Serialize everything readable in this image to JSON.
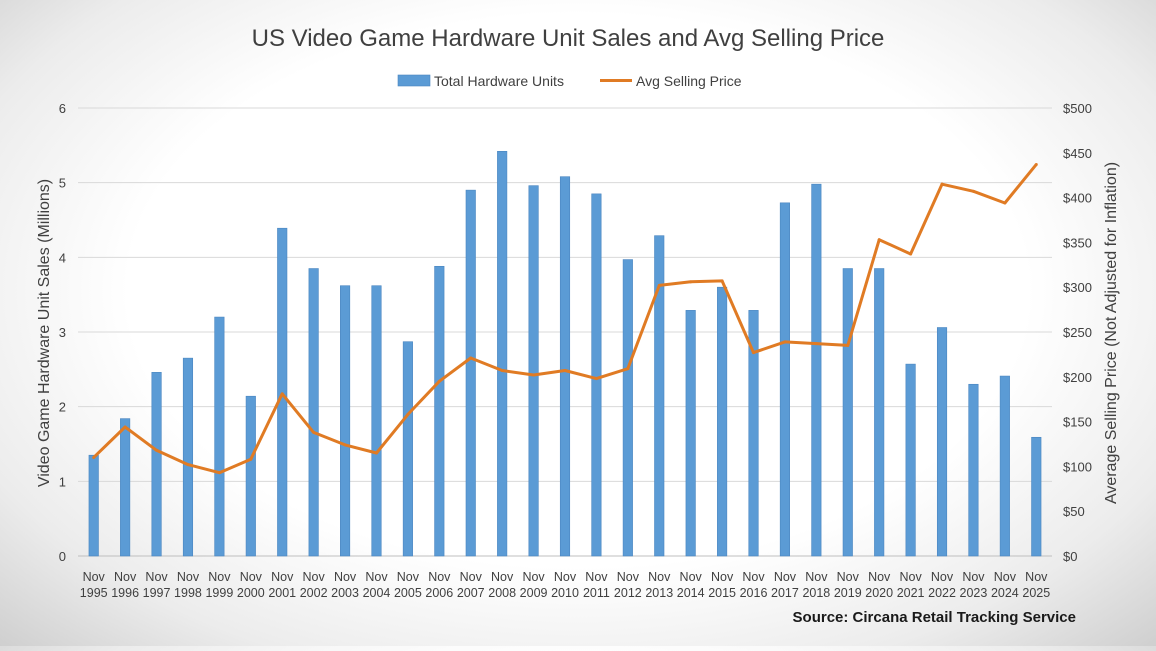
{
  "chart_data": {
    "type": "bar+line",
    "title": "US Video Game Hardware Unit Sales and Avg Selling Price",
    "ylabel_left": "Video Game Hardware Unit Sales (Millions)",
    "ylabel_right": "Average Selling Price (Not Adjusted for Inflation)",
    "source": "Source: Circana Retail Tracking Service",
    "legend": {
      "position": "top-center",
      "bar_label": "Total Hardware Units",
      "line_label": "Avg Selling Price"
    },
    "y_left": {
      "min": 0,
      "max": 6,
      "ticks": [
        "0",
        "1",
        "2",
        "3",
        "4",
        "5",
        "6"
      ]
    },
    "y_right": {
      "min": 0,
      "max": 500,
      "ticks": [
        "$0",
        "$50",
        "$100",
        "$150",
        "$200",
        "$250",
        "$300",
        "$350",
        "$400",
        "$450",
        "$500"
      ]
    },
    "grid": true,
    "categories": [
      {
        "month": "Nov",
        "year": "1995"
      },
      {
        "month": "Nov",
        "year": "1996"
      },
      {
        "month": "Nov",
        "year": "1997"
      },
      {
        "month": "Nov",
        "year": "1998"
      },
      {
        "month": "Nov",
        "year": "1999"
      },
      {
        "month": "Nov",
        "year": "2000"
      },
      {
        "month": "Nov",
        "year": "2001"
      },
      {
        "month": "Nov",
        "year": "2002"
      },
      {
        "month": "Nov",
        "year": "2003"
      },
      {
        "month": "Nov",
        "year": "2004"
      },
      {
        "month": "Nov",
        "year": "2005"
      },
      {
        "month": "Nov",
        "year": "2006"
      },
      {
        "month": "Nov",
        "year": "2007"
      },
      {
        "month": "Nov",
        "year": "2008"
      },
      {
        "month": "Nov",
        "year": "2009"
      },
      {
        "month": "Nov",
        "year": "2010"
      },
      {
        "month": "Nov",
        "year": "2011"
      },
      {
        "month": "Nov",
        "year": "2012"
      },
      {
        "month": "Nov",
        "year": "2013"
      },
      {
        "month": "Nov",
        "year": "2014"
      },
      {
        "month": "Nov",
        "year": "2015"
      },
      {
        "month": "Nov",
        "year": "2016"
      },
      {
        "month": "Nov",
        "year": "2017"
      },
      {
        "month": "Nov",
        "year": "2018"
      },
      {
        "month": "Nov",
        "year": "2019"
      },
      {
        "month": "Nov",
        "year": "2020"
      },
      {
        "month": "Nov",
        "year": "2021"
      },
      {
        "month": "Nov",
        "year": "2022"
      },
      {
        "month": "Nov",
        "year": "2023"
      },
      {
        "month": "Nov",
        "year": "2024"
      },
      {
        "month": "Nov",
        "year": "2025"
      }
    ],
    "series": [
      {
        "name": "Total Hardware Units",
        "axis": "left",
        "type": "bar",
        "values": [
          1.35,
          1.84,
          2.46,
          2.65,
          3.2,
          2.14,
          4.39,
          3.85,
          3.62,
          3.62,
          2.87,
          3.88,
          4.9,
          5.42,
          4.96,
          5.08,
          4.85,
          3.97,
          4.29,
          3.29,
          3.6,
          3.29,
          4.73,
          4.98,
          3.85,
          3.85,
          2.57,
          3.06,
          2.3,
          2.41,
          1.59
        ]
      },
      {
        "name": "Avg Selling Price",
        "axis": "right",
        "type": "line",
        "values": [
          110,
          144,
          118,
          102,
          93,
          108,
          181,
          138,
          124,
          115,
          158,
          195,
          221,
          207,
          202,
          207,
          198,
          209,
          302,
          306,
          307,
          227,
          239,
          237,
          235,
          353,
          337,
          415,
          407,
          394,
          437
        ]
      }
    ],
    "colors": {
      "bar": "#5b9bd5",
      "bar_stroke": "#4a86c0",
      "line": "#e07b24",
      "grid": "#d9d9d9",
      "text": "#404040"
    }
  }
}
